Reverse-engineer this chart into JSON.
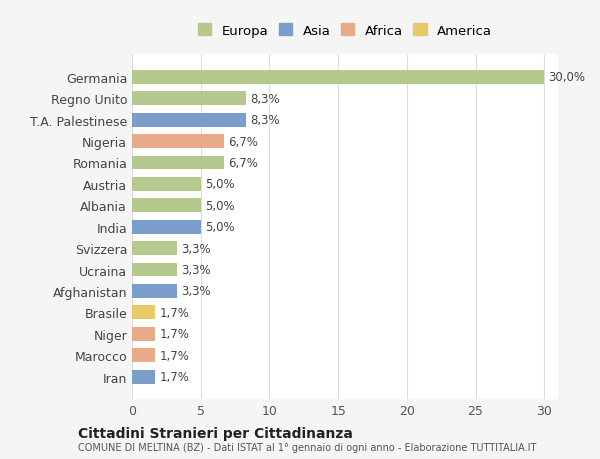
{
  "categories": [
    "Germania",
    "Regno Unito",
    "T.A. Palestinese",
    "Nigeria",
    "Romania",
    "Austria",
    "Albania",
    "India",
    "Svizzera",
    "Ucraina",
    "Afghanistan",
    "Brasile",
    "Niger",
    "Marocco",
    "Iran"
  ],
  "values": [
    30.0,
    8.3,
    8.3,
    6.7,
    6.7,
    5.0,
    5.0,
    5.0,
    3.3,
    3.3,
    3.3,
    1.7,
    1.7,
    1.7,
    1.7
  ],
  "labels": [
    "30,0%",
    "8,3%",
    "8,3%",
    "6,7%",
    "6,7%",
    "5,0%",
    "5,0%",
    "5,0%",
    "3,3%",
    "3,3%",
    "3,3%",
    "1,7%",
    "1,7%",
    "1,7%",
    "1,7%"
  ],
  "colors": [
    "#b5c98e",
    "#b5c98e",
    "#7b9dc9",
    "#e8aa87",
    "#b5c98e",
    "#b5c98e",
    "#b5c98e",
    "#7b9dc9",
    "#b5c98e",
    "#b5c98e",
    "#7b9dc9",
    "#e8c96a",
    "#e8aa87",
    "#e8aa87",
    "#7b9dc9"
  ],
  "legend_labels": [
    "Europa",
    "Asia",
    "Africa",
    "America"
  ],
  "legend_colors": [
    "#b5c98e",
    "#7b9dc9",
    "#e8aa87",
    "#e8c96a"
  ],
  "xlim": [
    0,
    31
  ],
  "xticks": [
    0,
    5,
    10,
    15,
    20,
    25,
    30
  ],
  "title": "Cittadini Stranieri per Cittadinanza",
  "subtitle": "COMUNE DI MELTINA (BZ) - Dati ISTAT al 1° gennaio di ogni anno - Elaborazione TUTTITALIA.IT",
  "background_color": "#f5f5f5",
  "bar_background": "#ffffff",
  "grid_color": "#dddddd"
}
